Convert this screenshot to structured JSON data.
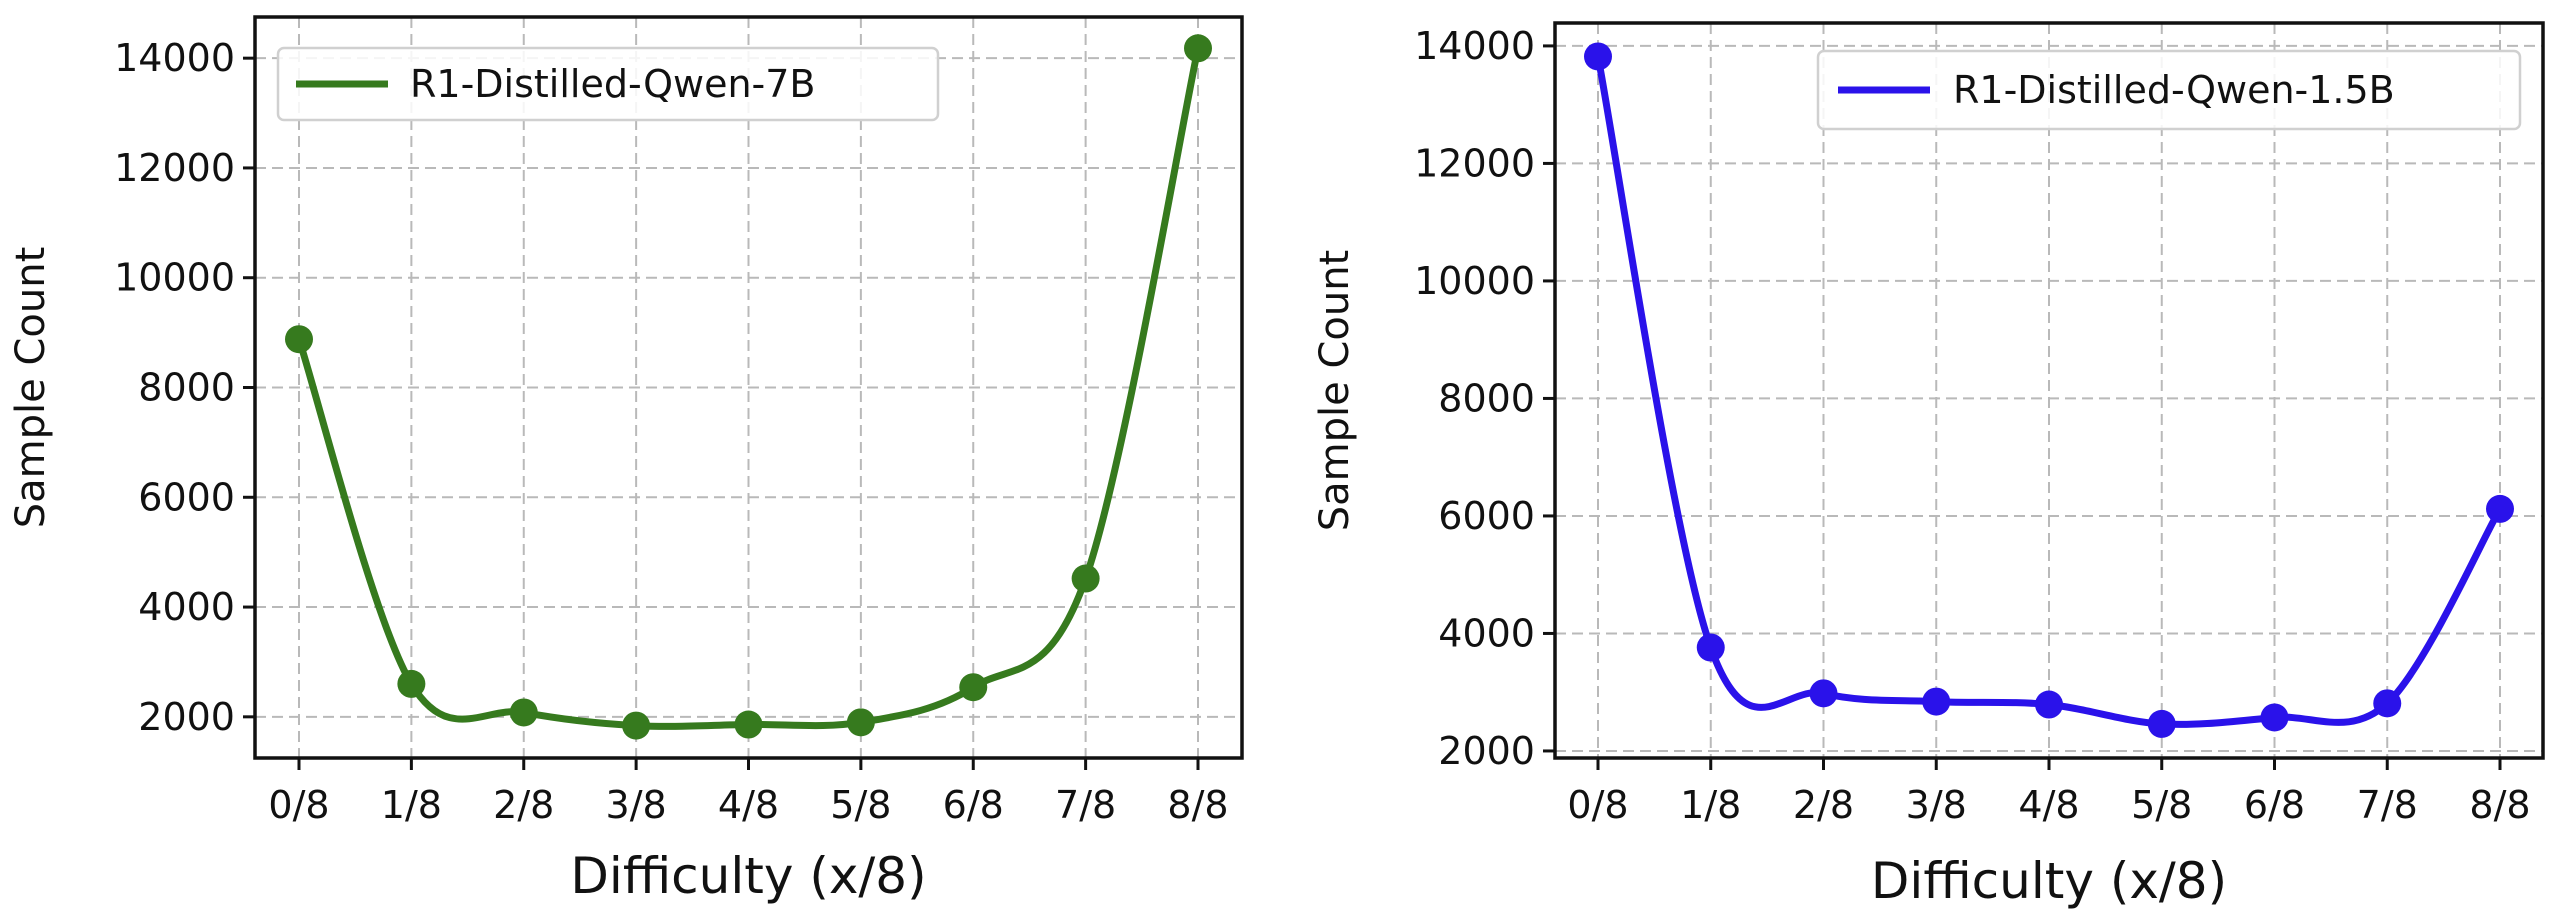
{
  "chart_data": [
    {
      "type": "line",
      "xlabel": "Difficulty (x/8)",
      "ylabel": "Sample Count",
      "categories": [
        "0/8",
        "1/8",
        "2/8",
        "3/8",
        "4/8",
        "5/8",
        "6/8",
        "7/8",
        "8/8"
      ],
      "series": [
        {
          "name": "R1-Distilled-Qwen-7B",
          "color": "#367a1e",
          "values": [
            8880,
            2600,
            2080,
            1840,
            1860,
            1900,
            2540,
            4520,
            14180
          ]
        }
      ],
      "ylim": [
        1250,
        14750
      ],
      "yticks": [
        2000,
        4000,
        6000,
        8000,
        10000,
        12000,
        14000
      ],
      "grid": true,
      "legend": "upper-left",
      "smooth": true
    },
    {
      "type": "line",
      "xlabel": "Difficulty (x/8)",
      "ylabel": "Sample Count",
      "categories": [
        "0/8",
        "1/8",
        "2/8",
        "3/8",
        "4/8",
        "5/8",
        "6/8",
        "7/8",
        "8/8"
      ],
      "series": [
        {
          "name": "R1-Distilled-Qwen-1.5B",
          "color": "#2a12ea",
          "values": [
            13820,
            3760,
            2980,
            2840,
            2790,
            2460,
            2570,
            2810,
            6120
          ]
        }
      ],
      "ylim": [
        1880,
        14390
      ],
      "yticks": [
        2000,
        4000,
        6000,
        8000,
        10000,
        12000,
        14000
      ],
      "grid": true,
      "legend": "upper-right",
      "smooth": true
    }
  ]
}
